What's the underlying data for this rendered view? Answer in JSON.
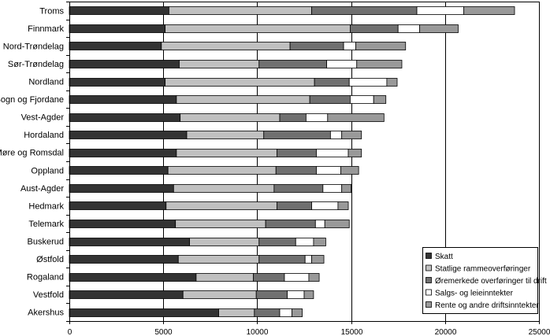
{
  "chart_data": {
    "type": "bar",
    "orientation": "horizontal",
    "stacked": true,
    "title": "",
    "xlabel": "",
    "ylabel": "",
    "xlim": [
      0,
      25000
    ],
    "xticks": [
      0,
      5000,
      10000,
      15000,
      20000,
      25000
    ],
    "xtick_labels": [
      "0",
      "5000",
      "10000",
      "15000",
      "20000",
      "25000"
    ],
    "grid": true,
    "legend_position": "bottom-right",
    "categories": [
      "Troms",
      "Finnmark",
      "Nord-Trøndelag",
      "Sør-Trøndelag",
      "Nordland",
      "Sogn og Fjordane",
      "Vest-Agder",
      "Hordaland",
      "Møre og Romsdal",
      "Oppland",
      "Aust-Agder",
      "Hedmark",
      "Telemark",
      "Buskerud",
      "Østfold",
      "Rogaland",
      "Vestfold",
      "Akershus"
    ],
    "series": [
      {
        "name": "Skatt",
        "color": "#333333",
        "values": [
          5300,
          5100,
          4900,
          5850,
          5100,
          5700,
          5900,
          6250,
          5700,
          5250,
          5550,
          5150,
          5650,
          6400,
          5800,
          6750,
          6050,
          7950
        ]
      },
      {
        "name": "Statlige rammeoverføringer",
        "color": "#c0c0c0",
        "values": [
          7600,
          9850,
          6850,
          4250,
          7950,
          7100,
          5300,
          4100,
          5350,
          5750,
          5350,
          5900,
          4800,
          3700,
          4300,
          3050,
          3900,
          1900
        ]
      },
      {
        "name": "Øremerkede overføringer til drift",
        "color": "#707070",
        "values": [
          5600,
          2550,
          2850,
          3600,
          1850,
          2150,
          1400,
          3550,
          2100,
          2150,
          2600,
          1850,
          2650,
          1950,
          2450,
          1650,
          1650,
          1350
        ]
      },
      {
        "name": "Salgs- og leieinntekter",
        "color": "#ffffff",
        "values": [
          2500,
          1150,
          650,
          1600,
          2000,
          1250,
          1150,
          600,
          1700,
          1300,
          1000,
          1400,
          500,
          950,
          350,
          1300,
          900,
          650
        ]
      },
      {
        "name": "Rente og andre driftsinntekter",
        "color": "#999999",
        "values": [
          2700,
          2050,
          2650,
          2400,
          550,
          650,
          3000,
          1050,
          700,
          950,
          500,
          550,
          1300,
          650,
          650,
          550,
          500,
          550
        ]
      }
    ]
  }
}
